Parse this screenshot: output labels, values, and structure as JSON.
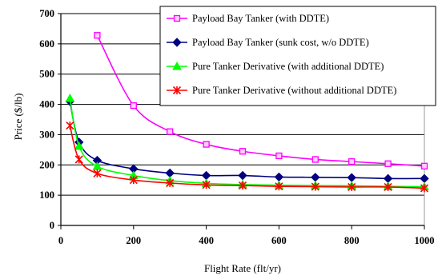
{
  "chart_data": {
    "type": "line",
    "title": "",
    "xlabel": "Flight Rate (flt/yr)",
    "ylabel": "Price ($/lb)",
    "xlim": [
      0,
      1000
    ],
    "ylim": [
      0,
      700
    ],
    "xticks": [
      0,
      200,
      400,
      600,
      800,
      1000
    ],
    "yticks": [
      0,
      100,
      200,
      300,
      400,
      500,
      600,
      700
    ],
    "grid": "horizontal",
    "legend_position": "top-right",
    "series": [
      {
        "name": "Payload Bay Tanker (with DDTE)",
        "color": "#ff00ff",
        "marker": "square",
        "x": [
          100,
          200,
          300,
          400,
          500,
          600,
          700,
          800,
          900,
          1000
        ],
        "y": [
          628,
          396,
          310,
          268,
          245,
          230,
          218,
          211,
          204,
          196
        ]
      },
      {
        "name": "Payload Bay Tanker (sunk cost, w/o DDTE)",
        "color": "#000080",
        "marker": "diamond",
        "x": [
          25,
          50,
          100,
          200,
          300,
          400,
          500,
          600,
          700,
          800,
          900,
          1000
        ],
        "y": [
          410,
          275,
          215,
          187,
          173,
          165,
          165,
          160,
          159,
          158,
          155,
          155
        ]
      },
      {
        "name": "Pure Tanker Derivative (with additional DDTE)",
        "color": "#00ff00",
        "marker": "triangle",
        "x": [
          25,
          50,
          100,
          200,
          300,
          400,
          500,
          600,
          700,
          800,
          900,
          1000
        ],
        "y": [
          420,
          262,
          195,
          165,
          148,
          139,
          135,
          133,
          132,
          131,
          129,
          128
        ]
      },
      {
        "name": "Pure Tanker Derivative (without additional DDTE)",
        "color": "#ff0000",
        "marker": "asterisk",
        "x": [
          25,
          50,
          100,
          200,
          300,
          400,
          500,
          600,
          700,
          800,
          900,
          1000
        ],
        "y": [
          330,
          218,
          172,
          150,
          140,
          134,
          132,
          129,
          128,
          127,
          127,
          123
        ]
      }
    ]
  }
}
